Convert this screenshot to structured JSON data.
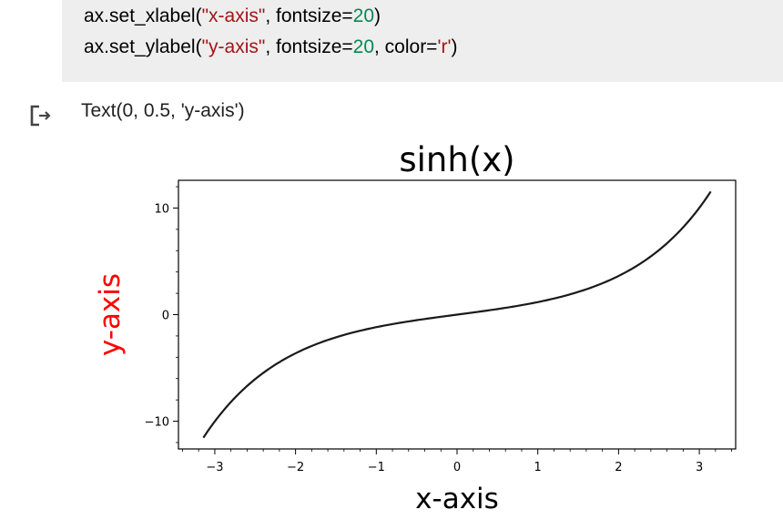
{
  "cell": {
    "code_line1": [
      {
        "t": "ax.set_xlabel(",
        "k": "plain"
      },
      {
        "t": "\"x-axis\"",
        "k": "str"
      },
      {
        "t": ", fontsize=",
        "k": "plain"
      },
      {
        "t": "20",
        "k": "num"
      },
      {
        "t": ")",
        "k": "plain"
      }
    ],
    "code_line2": [
      {
        "t": "ax.set_ylabel(",
        "k": "plain"
      },
      {
        "t": "\"y-axis\"",
        "k": "str"
      },
      {
        "t": ", fontsize=",
        "k": "plain"
      },
      {
        "t": "20",
        "k": "num"
      },
      {
        "t": ", color=",
        "k": "plain"
      },
      {
        "t": "'r'",
        "k": "str"
      },
      {
        "t": ")",
        "k": "plain"
      }
    ],
    "output_text": "Text(0, 0.5, 'y-axis')",
    "output_icon": "output-arrow-icon"
  },
  "colors": {
    "string": "#a31515",
    "number": "#098658",
    "line": "#1a1a1a",
    "ylabel": "#ff0000",
    "code_bg": "#eeeeee"
  },
  "chart_data": {
    "type": "line",
    "title": "sinh(x)",
    "xlabel": "x-axis",
    "ylabel": "y-axis",
    "ylabel_color": "#ff0000",
    "function": "sinh",
    "x_range": [
      -3.14159,
      3.14159
    ],
    "xlim": [
      -3.45,
      3.45
    ],
    "ylim": [
      -12.6,
      12.6
    ],
    "xticks": [
      -3,
      -2,
      -1,
      0,
      1,
      2,
      3
    ],
    "xtick_labels": [
      "−3",
      "−2",
      "−1",
      "0",
      "1",
      "2",
      "3"
    ],
    "yticks": [
      -10,
      0,
      10
    ],
    "ytick_labels": [
      "−10",
      "0",
      "10"
    ],
    "minor_xticks": true,
    "minor_yticks": true,
    "grid": false,
    "series": [
      {
        "x": [
          -3.14,
          -2.5,
          -2.0,
          -1.5,
          -1.0,
          -0.5,
          0,
          0.5,
          1.0,
          1.5,
          2.0,
          2.5,
          3.14
        ],
        "values": [
          -11.53,
          -6.05,
          -3.63,
          -2.13,
          -1.18,
          -0.52,
          0,
          0.52,
          1.18,
          2.13,
          3.63,
          6.05,
          11.53
        ]
      }
    ]
  }
}
